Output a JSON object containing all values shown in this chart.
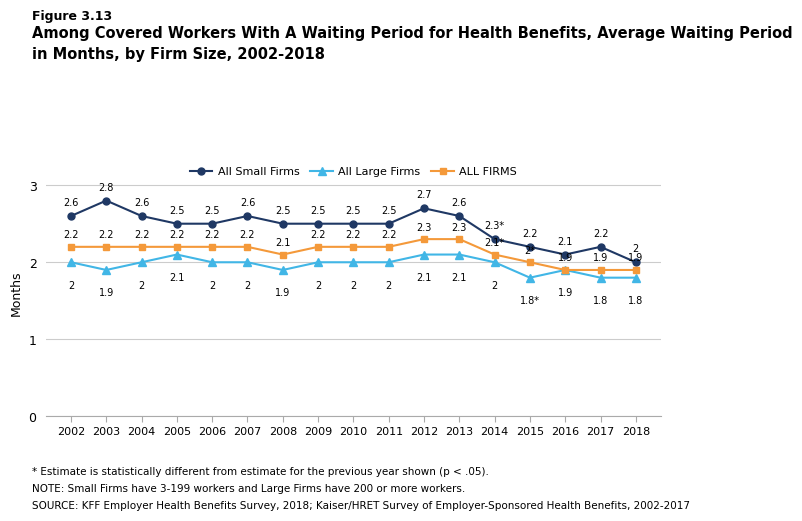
{
  "years": [
    2002,
    2003,
    2004,
    2005,
    2006,
    2007,
    2008,
    2009,
    2010,
    2011,
    2012,
    2013,
    2014,
    2015,
    2016,
    2017,
    2018
  ],
  "small_firms": [
    2.6,
    2.8,
    2.6,
    2.5,
    2.5,
    2.6,
    2.5,
    2.5,
    2.5,
    2.5,
    2.7,
    2.6,
    2.3,
    2.2,
    2.1,
    2.2,
    2.0
  ],
  "small_firms_labels": [
    "2.6",
    "2.8",
    "2.6",
    "2.5",
    "2.5",
    "2.6",
    "2.5",
    "2.5",
    "2.5",
    "2.5",
    "2.7",
    "2.6",
    "2.3*",
    "2.2",
    "2.1",
    "2.2",
    "2"
  ],
  "large_firms": [
    2.0,
    1.9,
    2.0,
    2.1,
    2.0,
    2.0,
    1.9,
    2.0,
    2.0,
    2.0,
    2.1,
    2.1,
    2.0,
    1.8,
    1.9,
    1.8,
    1.8
  ],
  "large_firms_labels": [
    "2",
    "1.9",
    "2",
    "2.1",
    "2",
    "2",
    "1.9",
    "2",
    "2",
    "2",
    "2.1",
    "2.1",
    "2",
    "1.8*",
    "1.9",
    "1.8",
    "1.8"
  ],
  "all_firms": [
    2.2,
    2.2,
    2.2,
    2.2,
    2.2,
    2.2,
    2.1,
    2.2,
    2.2,
    2.2,
    2.3,
    2.3,
    2.1,
    2.0,
    1.9,
    1.9,
    1.9
  ],
  "all_firms_labels": [
    "2.2",
    "2.2",
    "2.2",
    "2.2",
    "2.2",
    "2.2",
    "2.1",
    "2.2",
    "2.2",
    "2.2",
    "2.3",
    "2.3",
    "2.1*",
    "2*",
    "1.9",
    "1.9",
    "1.9"
  ],
  "small_color": "#1f3864",
  "large_color": "#41b6e6",
  "all_color": "#f4993a",
  "figure_label": "Figure 3.13",
  "title_line1": "Among Covered Workers With A Waiting Period for Health Benefits, Average Waiting Period",
  "title_line2": "in Months, by Firm Size, 2002-2018",
  "ylabel": "Months",
  "ylim": [
    0,
    3.2
  ],
  "yticks": [
    0,
    1,
    2,
    3
  ],
  "legend_labels": [
    "All Small Firms",
    "All Large Firms",
    "ALL FIRMS"
  ],
  "footnote1": "* Estimate is statistically different from estimate for the previous year shown (p < .05).",
  "footnote2": "NOTE: Small Firms have 3-199 workers and Large Firms have 200 or more workers.",
  "footnote3": "SOURCE: KFF Employer Health Benefits Survey, 2018; Kaiser/HRET Survey of Employer-Sponsored Health Benefits, 2002-2017"
}
